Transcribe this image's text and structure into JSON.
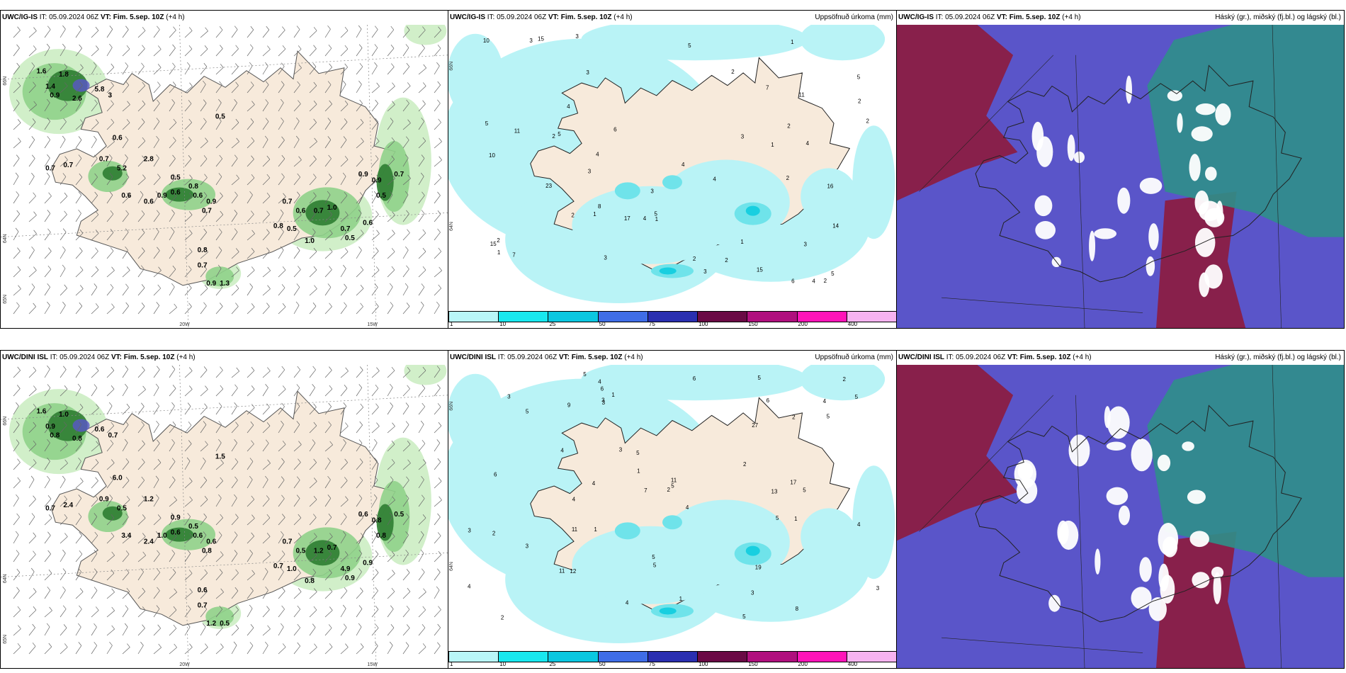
{
  "colors": {
    "land": "#f7eadb",
    "sea": "#ffffff",
    "green_light": "#c9ecc0",
    "green_mid": "#8fd18a",
    "green_dark": "#2e7d32",
    "green_darkest": "#0f3d14",
    "precip_light": "#b9f3f6",
    "precip_mid": "#6fe3ea",
    "precip_strong": "#18cfe0",
    "cloud_blue": "#5a55c9",
    "cloud_red": "#8b1d44",
    "cloud_teal": "#2f8f8a",
    "cloud_white": "#ffffff"
  },
  "rows": [
    {
      "model": "UWC/IG-IS",
      "panels": [
        {
          "kind": "wind",
          "model": "UWC/IG-IS",
          "it_label": "IT:",
          "it_value": "05.09.2024 06Z",
          "vt_label": "VT:",
          "vt_value": "Fim. 5.sep. 10Z",
          "lead": "(+4 h)",
          "right_label": "",
          "axis_labels": [
            "66N",
            "64N",
            "65N",
            "20W",
            "15W"
          ],
          "values": [
            "1.6",
            "1.8",
            "1.4",
            "0.9",
            "2.6",
            "5.8",
            "3",
            "0.5",
            "0.6",
            "0.7",
            "0.7",
            "5.2",
            "2.8",
            "0.7",
            "0.6",
            "0.6",
            "0.5",
            "0.8",
            "0.9",
            "0.6",
            "0.9",
            "0.6",
            "0.7",
            "0.7",
            "0.6",
            "0.8",
            "0.5",
            "1.0",
            "0.7",
            "1.0",
            "0.9",
            "0.9",
            "0.7",
            "0.5",
            "0.6",
            "0.5",
            "0.7",
            "0.8",
            "0.7",
            "0.9",
            "1.3"
          ]
        },
        {
          "kind": "precip",
          "model": "UWC/IG-IS",
          "it_label": "IT:",
          "it_value": "05.09.2024 06Z",
          "vt_label": "VT:",
          "vt_value": "Fim. 5.sep. 10Z",
          "lead": "(+4 h)",
          "right_label": "Uppsöfnuð úrkoma (mm)",
          "axis_labels": [
            "66N",
            "64N"
          ],
          "values": [
            "3",
            "2",
            "3",
            "2",
            "2",
            "3",
            "4",
            "3",
            "1",
            "1",
            "4",
            "5",
            "10",
            "6",
            "4",
            "1",
            "4",
            "2",
            "5",
            "6",
            "4",
            "5",
            "2",
            "2",
            "3",
            "3",
            "2",
            "2",
            "11",
            "15",
            "8",
            "17",
            "7",
            "14",
            "7",
            "5",
            "11",
            "15",
            "23",
            "3",
            "10",
            "5",
            "16",
            "15",
            "1",
            "1",
            "5",
            "4",
            "3",
            "2",
            "3",
            "2",
            "4",
            "1",
            "2"
          ],
          "colorbar": [
            "1",
            "10",
            "25",
            "50",
            "75",
            "100",
            "150",
            "200",
            "400"
          ]
        },
        {
          "kind": "cloud",
          "model": "UWC/IG-IS",
          "it_label": "IT:",
          "it_value": "05.09.2024 06Z",
          "vt_label": "VT:",
          "vt_value": "Fim. 5.sep. 10Z",
          "lead": "(+4 h)",
          "right_label": "Háský (gr.), miðský (fj.bl.) og lágský (bl.)",
          "axis_labels": [],
          "values": []
        }
      ]
    },
    {
      "model": "UWC/DINI ISL",
      "panels": [
        {
          "kind": "wind",
          "model": "UWC/DINI ISL",
          "it_label": "IT:",
          "it_value": "05.09.2024 06Z",
          "vt_label": "VT:",
          "vt_value": "Fim. 5.sep. 10Z",
          "lead": "(+4 h)",
          "right_label": "",
          "axis_labels": [
            "66N",
            "64N",
            "65N",
            "20W",
            "15W"
          ],
          "values": [
            "1.6",
            "1.0",
            "0.9",
            "0.8",
            "0.8",
            "0.6",
            "0.7",
            "1.5",
            "6.0",
            "2.4",
            "0.9",
            "0.5",
            "1.2",
            "0.7",
            "3.4",
            "2.4",
            "0.9",
            "0.5",
            "0.6",
            "0.6",
            "1.0",
            "0.6",
            "0.8",
            "0.7",
            "0.5",
            "0.7",
            "1.0",
            "0.8",
            "1.2",
            "0.7",
            "0.6",
            "0.8",
            "4.9",
            "0.8",
            "0.9",
            "0.9",
            "0.5",
            "0.6",
            "0.7",
            "1.2",
            "0.5"
          ]
        },
        {
          "kind": "precip",
          "model": "UWC/DINI ISL",
          "it_label": "IT:",
          "it_value": "05.09.2024 06Z",
          "vt_label": "VT:",
          "vt_value": "Fim. 5.sep. 10Z",
          "lead": "(+4 h)",
          "right_label": "Uppsöfnuð úrkoma (mm)",
          "axis_labels": [
            "66N",
            "64N"
          ],
          "values": [
            "2",
            "3",
            "3",
            "4",
            "5",
            "5",
            "4",
            "3",
            "5",
            "2",
            "1",
            "2",
            "3",
            "4",
            "3",
            "5",
            "9",
            "6",
            "4",
            "4",
            "5",
            "1",
            "5",
            "3",
            "3",
            "5",
            "5",
            "1",
            "2",
            "13",
            "12",
            "11",
            "7",
            "4",
            "11",
            "11",
            "27",
            "6",
            "5",
            "6",
            "5",
            "5",
            "4",
            "5",
            "6",
            "17",
            "19",
            "2",
            "8",
            "4",
            "4",
            "3",
            "1",
            "2",
            "1"
          ],
          "colorbar": [
            "1",
            "10",
            "25",
            "50",
            "75",
            "100",
            "150",
            "200",
            "400"
          ]
        },
        {
          "kind": "cloud",
          "model": "UWC/DINI ISL",
          "it_label": "IT:",
          "it_value": "05.09.2024 06Z",
          "vt_label": "VT:",
          "vt_value": "Fim. 5.sep. 10Z",
          "lead": "(+4 h)",
          "right_label": "Háský (gr.), miðský (fj.bl.) og lágský (bl.)",
          "axis_labels": [],
          "values": []
        }
      ]
    }
  ]
}
